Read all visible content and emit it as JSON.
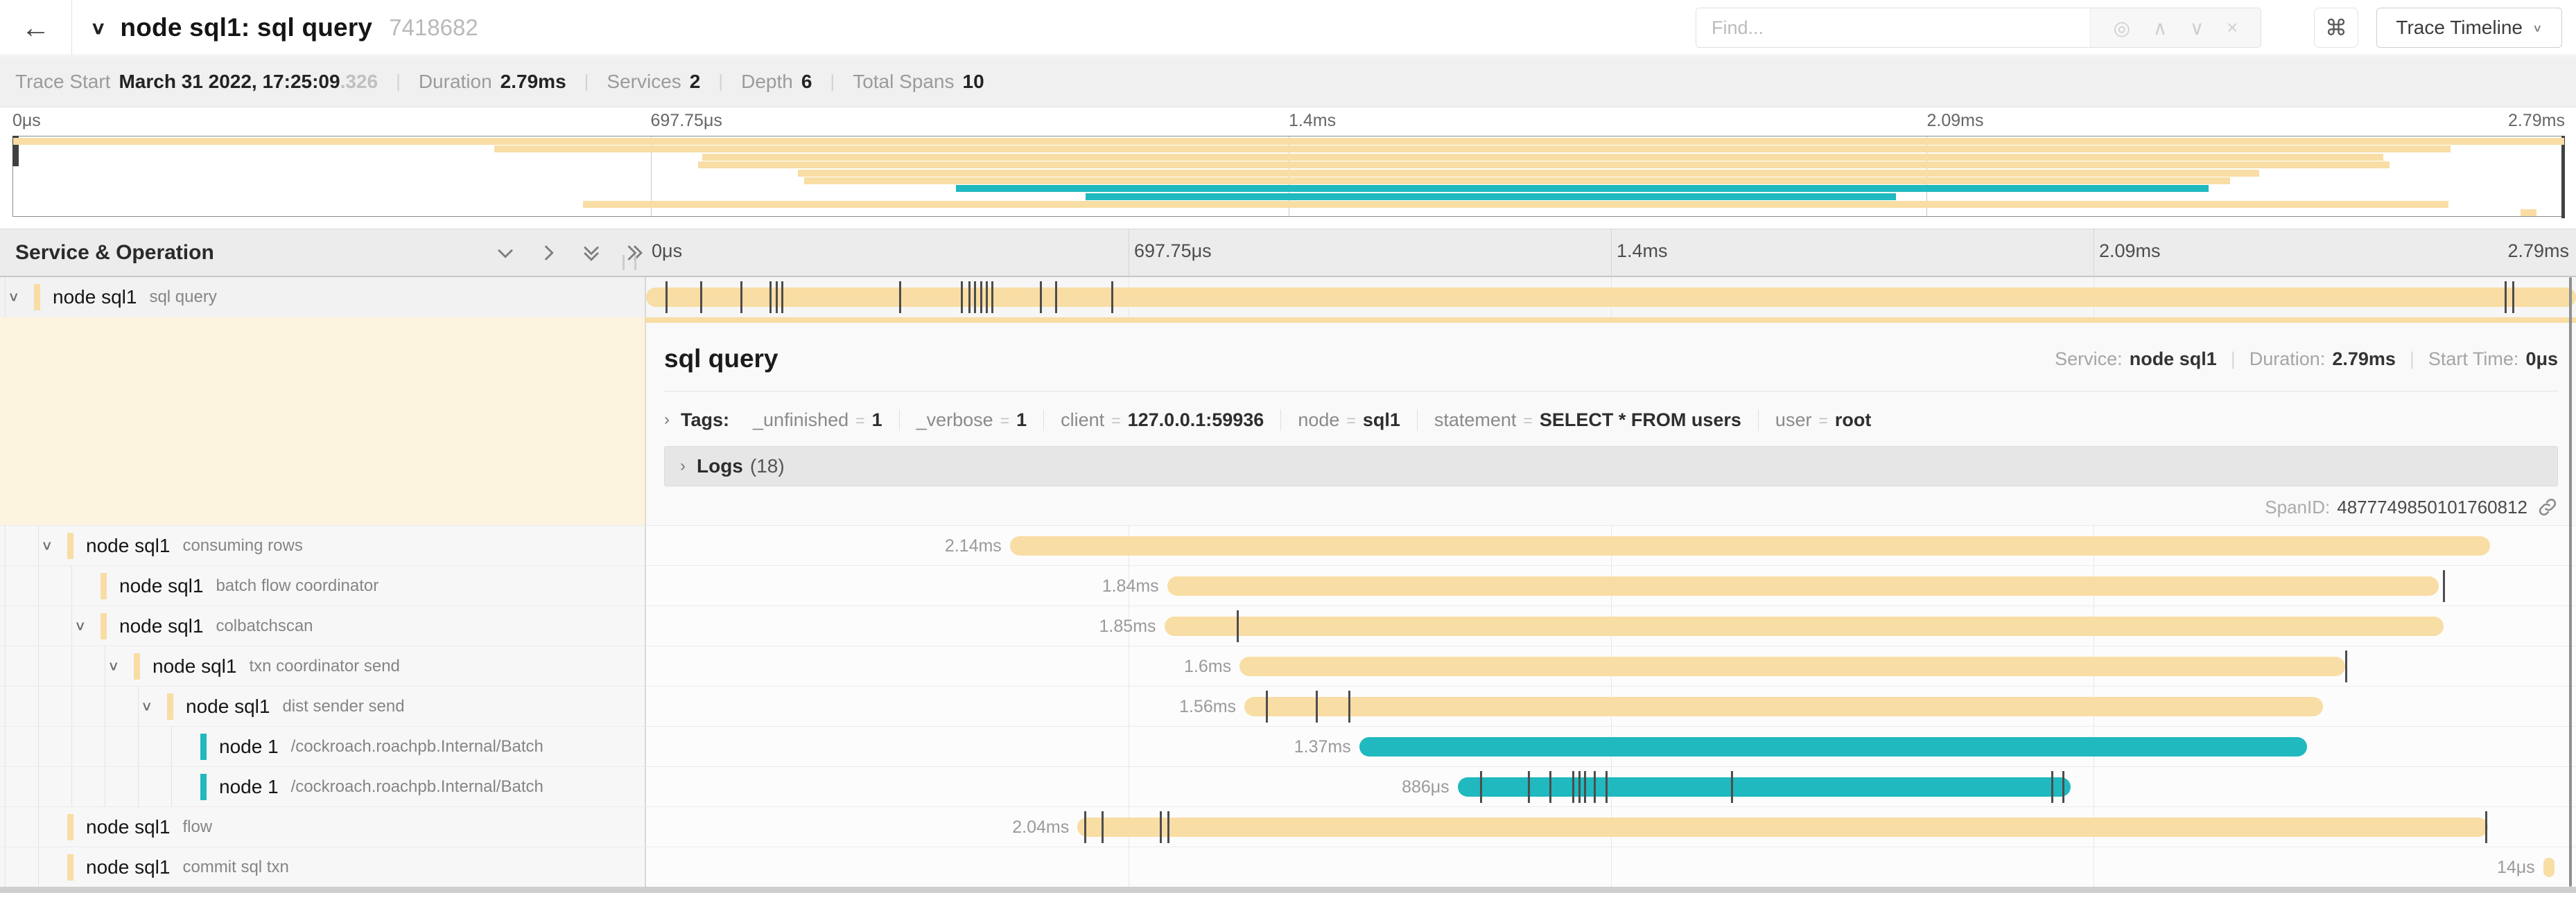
{
  "colors": {
    "tan": "#F8DDA4",
    "teal": "#1FB9BF",
    "detail_left_bg": "#fdf4e0"
  },
  "header": {
    "back_icon": "←",
    "collapse_icon": "∨",
    "title": "node sql1: sql query",
    "trace_id": "7418682",
    "find_placeholder": "Find...",
    "find_icons": [
      "◎",
      "∧",
      "∨",
      "×"
    ],
    "kbd_button": "⌘",
    "view_button": "Trace Timeline",
    "view_chevron": "∨"
  },
  "stats": [
    {
      "label": "Trace Start",
      "value": "March 31 2022, 17:25:09",
      "suffix": ".326"
    },
    {
      "label": "Duration",
      "value": "2.79ms"
    },
    {
      "label": "Services",
      "value": "2"
    },
    {
      "label": "Depth",
      "value": "6"
    },
    {
      "label": "Total Spans",
      "value": "10"
    }
  ],
  "ruler_ticks": [
    "0μs",
    "697.75μs",
    "1.4ms",
    "2.09ms",
    "2.79ms"
  ],
  "section": {
    "title": "Service & Operation"
  },
  "minimap_rows": [
    {
      "start": 0,
      "end": 100,
      "color": "tan"
    },
    {
      "start": 18.85,
      "end": 95.55,
      "color": "tan"
    },
    {
      "start": 27.0,
      "end": 92.9,
      "color": "tan"
    },
    {
      "start": 26.85,
      "end": 93.15,
      "color": "tan"
    },
    {
      "start": 30.75,
      "end": 88.05,
      "color": "tan"
    },
    {
      "start": 31.0,
      "end": 86.9,
      "color": "tan"
    },
    {
      "start": 36.95,
      "end": 86.05,
      "color": "teal"
    },
    {
      "start": 42.05,
      "end": 73.8,
      "color": "teal"
    },
    {
      "start": 22.35,
      "end": 95.45,
      "color": "tan"
    },
    {
      "start": 98.3,
      "end": 98.9,
      "color": "tan"
    }
  ],
  "spans": [
    {
      "service": "node sql1",
      "operation": "sql query",
      "depth": 0,
      "expandable": true,
      "selected": true,
      "color": "tan",
      "start": 0,
      "width": 100,
      "duration": "",
      "ticks": [
        1.0,
        2.8,
        4.9,
        6.4,
        6.7,
        7.0,
        13.1,
        16.3,
        16.7,
        17.0,
        17.3,
        17.6,
        17.9,
        20.4,
        21.2,
        24.1,
        96.3,
        96.7
      ]
    },
    {
      "service": "node sql1",
      "operation": "consuming rows",
      "depth": 1,
      "expandable": true,
      "selected": false,
      "color": "tan",
      "start": 18.85,
      "width": 76.7,
      "duration": "2.14ms",
      "ticks": []
    },
    {
      "service": "node sql1",
      "operation": "batch flow coordinator",
      "depth": 2,
      "expandable": false,
      "selected": false,
      "color": "tan",
      "start": 27.0,
      "width": 65.9,
      "duration": "1.84ms",
      "ticks": [
        93.1
      ]
    },
    {
      "service": "node sql1",
      "operation": "colbatchscan",
      "depth": 2,
      "expandable": true,
      "selected": false,
      "color": "tan",
      "start": 26.85,
      "width": 66.3,
      "duration": "1.85ms",
      "ticks": [
        30.6
      ]
    },
    {
      "service": "node sql1",
      "operation": "txn coordinator send",
      "depth": 3,
      "expandable": true,
      "selected": false,
      "color": "tan",
      "start": 30.75,
      "width": 57.3,
      "duration": "1.6ms",
      "ticks": [
        88.05
      ]
    },
    {
      "service": "node sql1",
      "operation": "dist sender send",
      "depth": 4,
      "expandable": true,
      "selected": false,
      "color": "tan",
      "start": 31.0,
      "width": 55.9,
      "duration": "1.56ms",
      "ticks": [
        32.1,
        34.7,
        36.4
      ]
    },
    {
      "service": "node 1",
      "operation": "/cockroach.roachpb.Internal/Batch",
      "depth": 5,
      "expandable": false,
      "selected": false,
      "color": "teal",
      "start": 36.95,
      "width": 49.1,
      "duration": "1.37ms",
      "ticks": []
    },
    {
      "service": "node 1",
      "operation": "/cockroach.roachpb.Internal/Batch",
      "depth": 5,
      "expandable": false,
      "selected": false,
      "color": "teal",
      "start": 42.05,
      "width": 31.75,
      "duration": "886μs",
      "ticks": [
        43.2,
        45.7,
        46.8,
        48.0,
        48.3,
        48.6,
        49.1,
        49.7,
        56.2,
        72.8,
        73.4
      ]
    },
    {
      "service": "node sql1",
      "operation": "flow",
      "depth": 1,
      "expandable": false,
      "selected": false,
      "color": "tan",
      "start": 22.35,
      "width": 73.1,
      "duration": "2.04ms",
      "ticks": [
        22.7,
        23.6,
        26.6,
        27.0,
        95.3
      ]
    },
    {
      "service": "node sql1",
      "operation": "commit sql txn",
      "depth": 1,
      "expandable": false,
      "selected": false,
      "color": "tan",
      "start": 98.3,
      "width": 0.6,
      "duration": "14μs",
      "ticks": []
    }
  ],
  "detail": {
    "title": "sql query",
    "meta": [
      {
        "label": "Service:",
        "value": "node sql1"
      },
      {
        "label": "Duration:",
        "value": "2.79ms"
      },
      {
        "label": "Start Time:",
        "value": "0μs"
      }
    ],
    "tags_arrow": "›",
    "tags_label": "Tags:",
    "tags": [
      {
        "key": "_unfinished",
        "value": "1"
      },
      {
        "key": "_verbose",
        "value": "1"
      },
      {
        "key": "client",
        "value": "127.0.0.1:59936"
      },
      {
        "key": "node",
        "value": "sql1"
      },
      {
        "key": "statement",
        "value": "SELECT * FROM users"
      },
      {
        "key": "user",
        "value": "root"
      }
    ],
    "logs_arrow": "›",
    "logs_label": "Logs",
    "logs_count": "(18)",
    "span_id_label": "SpanID:",
    "span_id": "4877749850101760812"
  }
}
